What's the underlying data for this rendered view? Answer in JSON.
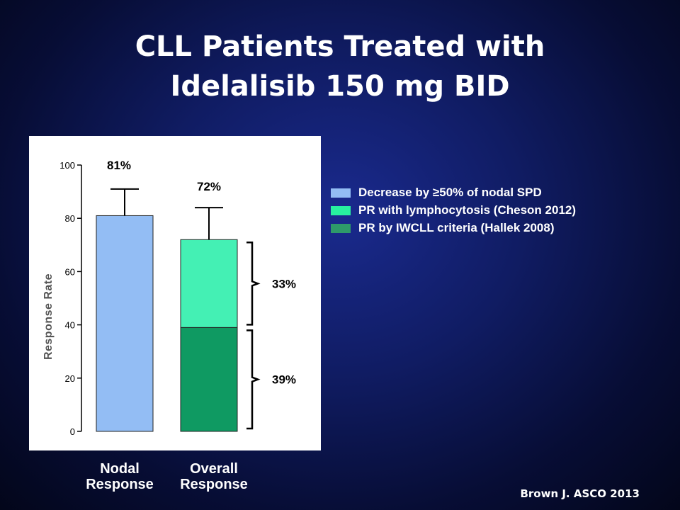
{
  "title_line1": "CLL Patients Treated with",
  "title_line2": "Idelalisib 150 mg BID",
  "source": "Brown J. ASCO 2013",
  "categories": [
    "Nodal\nResponse",
    "Overall\nResponse"
  ],
  "legend": [
    {
      "label": "Decrease by ≥50% of nodal SPD",
      "color": "#93bdf4"
    },
    {
      "label": "PR with lymphocytosis (Cheson 2012)",
      "color": "#28f0a0"
    },
    {
      "label": "PR by IWCLL criteria (Hallek 2008)",
      "color": "#2e9a6a"
    }
  ],
  "chart_data": {
    "type": "bar",
    "stacked": true,
    "ylabel": "Response Rate",
    "ylim": [
      0,
      100
    ],
    "yticks": [
      0,
      20,
      40,
      60,
      80,
      100
    ],
    "categories": [
      "Nodal Response",
      "Overall Response"
    ],
    "series": [
      {
        "name": "Decrease by ≥50% of nodal SPD",
        "values": [
          81,
          0
        ],
        "color": "#93bdf4"
      },
      {
        "name": "PR by IWCLL criteria (Hallek 2008)",
        "values": [
          0,
          39
        ],
        "color": "#0f9a62"
      },
      {
        "name": "PR with lymphocytosis (Cheson 2012)",
        "values": [
          0,
          33
        ],
        "color": "#44f0b4"
      }
    ],
    "error_upper": [
      91,
      84
    ],
    "bar_labels": [
      "81%",
      "72%"
    ],
    "bracket_labels": [
      "33%",
      "39%"
    ],
    "legend_position": "right"
  }
}
